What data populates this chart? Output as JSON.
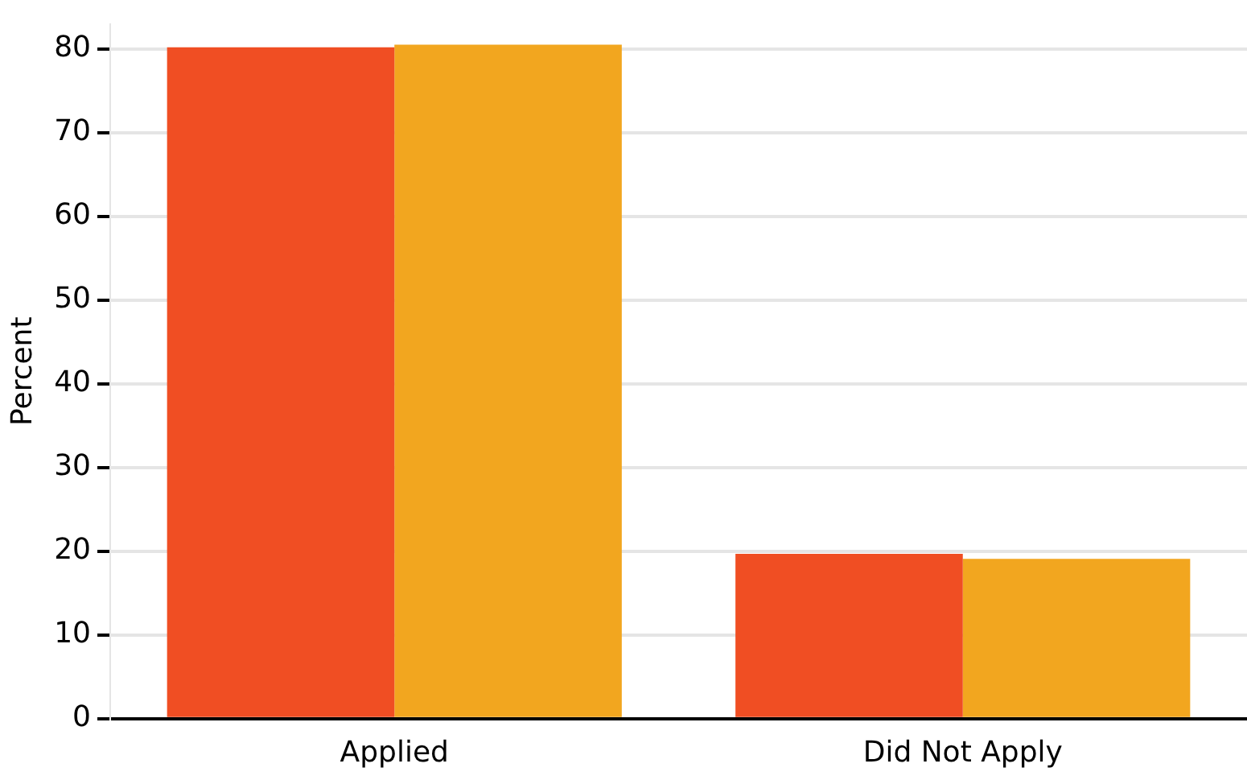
{
  "chart_data": {
    "type": "bar",
    "ylabel": "Percent",
    "categories": [
      "Applied",
      "Did Not Apply"
    ],
    "series": [
      {
        "color": "#f04e23",
        "values": [
          80.2,
          19.7
        ]
      },
      {
        "color": "#f2a61f",
        "values": [
          80.5,
          19.1
        ]
      }
    ],
    "ylim": [
      0,
      83
    ],
    "yticks": [
      0,
      10,
      20,
      30,
      40,
      50,
      60,
      70,
      80
    ],
    "grid": "y",
    "legend": false
  }
}
